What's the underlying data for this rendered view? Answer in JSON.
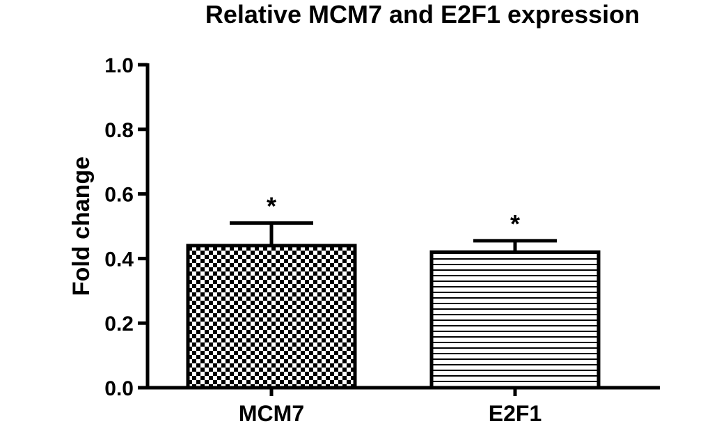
{
  "chart_data": {
    "type": "bar",
    "title": "Relative MCM7 and E2F1 expression",
    "ylabel": "Fold change",
    "xlabel": "",
    "ylim": [
      0,
      1.0
    ],
    "yticks": [
      "0.0",
      "0.2",
      "0.4",
      "0.6",
      "0.8",
      "1.0"
    ],
    "categories": [
      "MCM7",
      "E2F1"
    ],
    "values": [
      0.44,
      0.42
    ],
    "error_upper": [
      0.07,
      0.035
    ],
    "annotations": [
      "*",
      "*"
    ],
    "fill_patterns": [
      "checkerboard",
      "horizontal-lines"
    ],
    "grid": false,
    "legend": "none"
  }
}
